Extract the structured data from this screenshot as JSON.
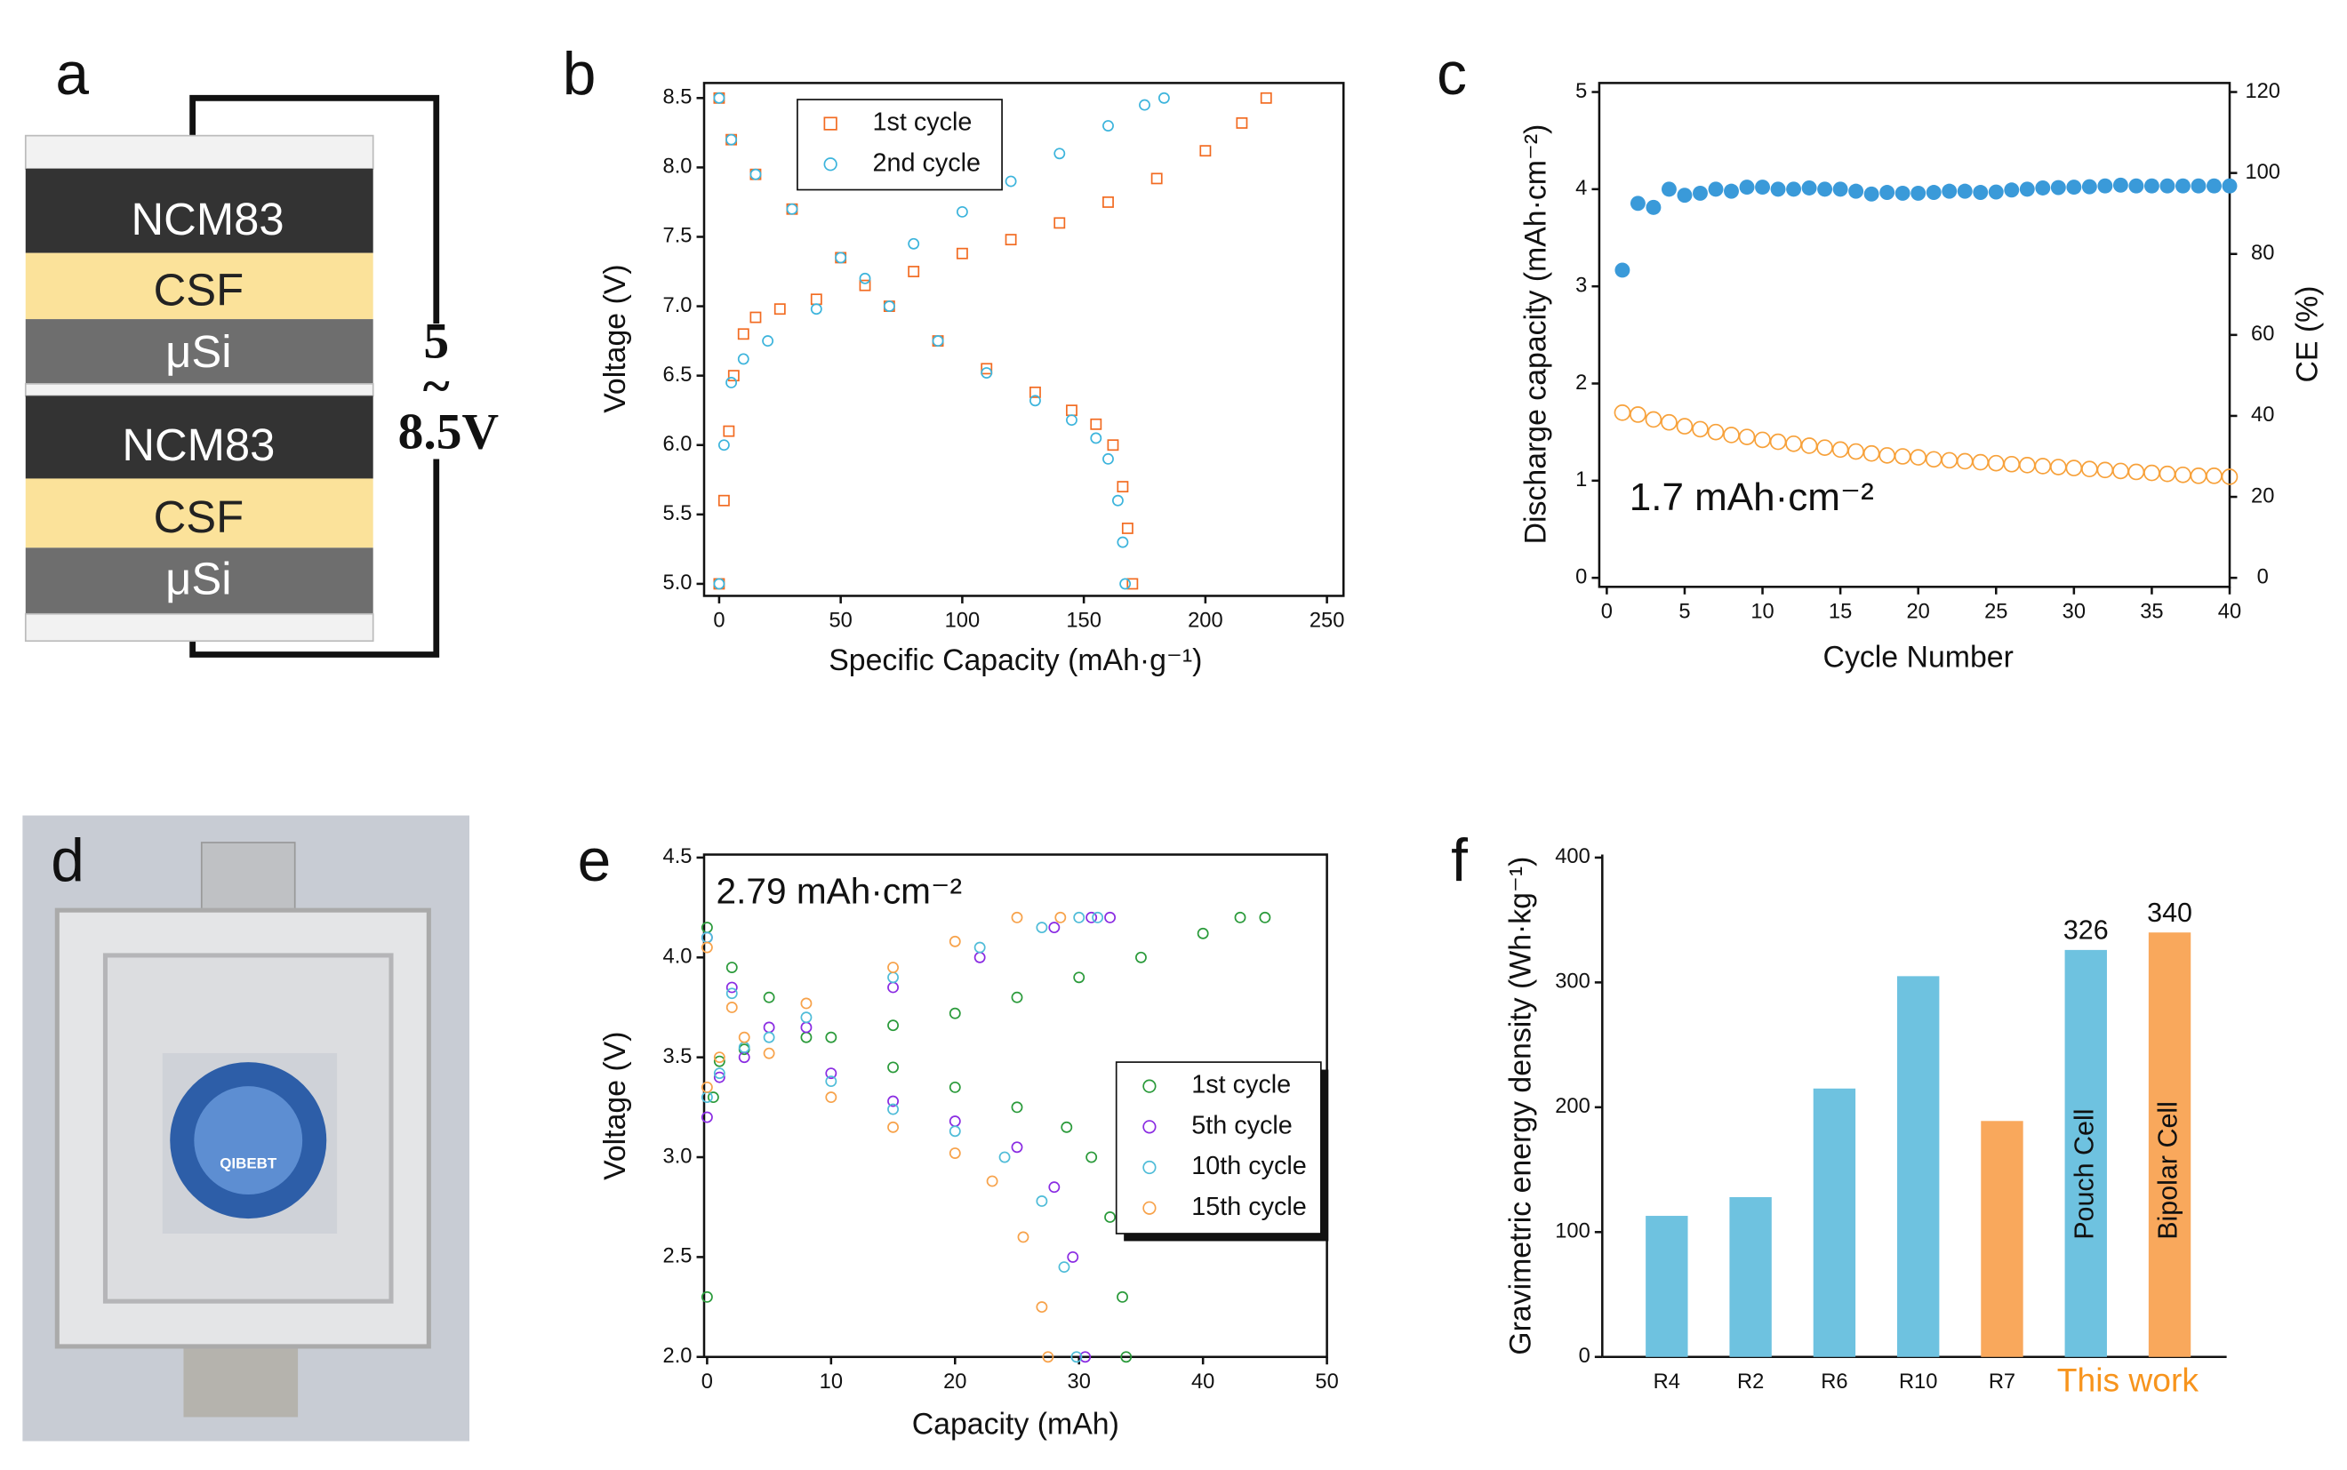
{
  "panels": [
    "a",
    "b",
    "c",
    "d",
    "e",
    "f"
  ],
  "diagram": {
    "layers": [
      "NCM83",
      "CSF",
      "μSi",
      "NCM83",
      "CSF",
      "μSi"
    ],
    "voltage": [
      "5",
      "~",
      "8.5V"
    ]
  },
  "photo": {
    "logo_text": "QIBEBT"
  },
  "chart_data": [
    {
      "type": "scatter",
      "x_label": "Specific Capacity (mAh·g⁻¹)",
      "y_label": "Voltage (V)",
      "xlim": [
        0,
        250
      ],
      "xticks": [
        0,
        50,
        100,
        150,
        200,
        250
      ],
      "ylim": [
        5,
        8.5
      ],
      "yticks": [
        {
          "value": 5,
          "label": "5.0"
        },
        {
          "value": 5.5,
          "label": "5.5"
        },
        {
          "value": 6,
          "label": "6.0"
        },
        {
          "value": 6.5,
          "label": "6.5"
        },
        {
          "value": 7,
          "label": "7.0"
        },
        {
          "value": 7.5,
          "label": "7.5"
        },
        {
          "value": 8,
          "label": "8.0"
        },
        {
          "value": 8.5,
          "label": "8.5"
        }
      ],
      "legend": "upper left",
      "frame": true,
      "series": [
        {
          "name": "1st cycle",
          "color": "#f26b21",
          "marker": "square",
          "x": [
            0,
            2,
            4,
            6,
            10,
            15,
            25,
            40,
            60,
            80,
            100,
            120,
            140,
            160,
            180,
            200,
            215,
            225,
            0,
            5,
            15,
            30,
            50,
            70,
            90,
            110,
            130,
            145,
            155,
            162,
            166,
            168,
            170
          ],
          "values": [
            5.0,
            5.6,
            6.1,
            6.5,
            6.8,
            6.92,
            6.98,
            7.05,
            7.15,
            7.25,
            7.38,
            7.48,
            7.6,
            7.75,
            7.92,
            8.12,
            8.32,
            8.5,
            8.5,
            8.2,
            7.95,
            7.7,
            7.35,
            7.0,
            6.75,
            6.55,
            6.38,
            6.25,
            6.15,
            6.0,
            5.7,
            5.4,
            5.0
          ]
        },
        {
          "name": "2nd cycle",
          "color": "#3cb4dc",
          "marker": "circle",
          "x": [
            0,
            2,
            5,
            10,
            20,
            40,
            60,
            80,
            100,
            120,
            140,
            160,
            175,
            183,
            0,
            5,
            15,
            30,
            50,
            70,
            90,
            110,
            130,
            145,
            155,
            160,
            164,
            166,
            167
          ],
          "values": [
            5.0,
            6.0,
            6.45,
            6.62,
            6.75,
            6.98,
            7.2,
            7.45,
            7.68,
            7.9,
            8.1,
            8.3,
            8.45,
            8.5,
            8.5,
            8.2,
            7.95,
            7.7,
            7.35,
            7.0,
            6.75,
            6.52,
            6.32,
            6.18,
            6.05,
            5.9,
            5.6,
            5.3,
            5.0
          ]
        }
      ]
    },
    {
      "type": "scatter",
      "x_label": "Cycle Number",
      "y_label": "Discharge capacity (mAh·cm⁻²)",
      "y2_label": "CE (%)",
      "annotation": "1.7 mAh·cm⁻²",
      "xlim": [
        0,
        40
      ],
      "xticks": [
        0,
        5,
        10,
        15,
        20,
        25,
        30,
        35,
        40
      ],
      "ylim": [
        0,
        5
      ],
      "yticks": [
        0,
        1,
        2,
        3,
        4,
        5
      ],
      "y2lim": [
        0,
        120
      ],
      "y2ticks": [
        0,
        20,
        40,
        60,
        80,
        100,
        120
      ],
      "frame": true,
      "series": [
        {
          "name": "Discharge capacity",
          "color": "#f7a13a",
          "marker": "circle",
          "x": [
            1,
            2,
            3,
            4,
            5,
            6,
            7,
            8,
            9,
            10,
            11,
            12,
            13,
            14,
            15,
            16,
            17,
            18,
            19,
            20,
            21,
            22,
            23,
            24,
            25,
            26,
            27,
            28,
            29,
            30,
            31,
            32,
            33,
            34,
            35,
            36,
            37,
            38,
            39,
            40
          ],
          "values": [
            1.7,
            1.68,
            1.63,
            1.6,
            1.56,
            1.53,
            1.5,
            1.47,
            1.45,
            1.42,
            1.4,
            1.38,
            1.36,
            1.34,
            1.32,
            1.3,
            1.28,
            1.26,
            1.25,
            1.24,
            1.22,
            1.21,
            1.2,
            1.19,
            1.18,
            1.17,
            1.16,
            1.15,
            1.14,
            1.13,
            1.12,
            1.11,
            1.1,
            1.09,
            1.08,
            1.07,
            1.06,
            1.05,
            1.05,
            1.04
          ]
        },
        {
          "name": "CE",
          "color": "#3a9ad9",
          "marker": "disc",
          "axis": "y2",
          "x": [
            1,
            2,
            3,
            4,
            5,
            6,
            7,
            8,
            9,
            10,
            11,
            12,
            13,
            14,
            15,
            16,
            17,
            18,
            19,
            20,
            21,
            22,
            23,
            24,
            25,
            26,
            27,
            28,
            29,
            30,
            31,
            32,
            33,
            34,
            35,
            36,
            37,
            38,
            39,
            40
          ],
          "values": [
            76,
            92.5,
            91.5,
            96,
            94.5,
            95,
            96,
            95.5,
            96.5,
            96.5,
            96,
            96,
            96.3,
            96,
            96,
            95.5,
            94.8,
            95.2,
            95,
            95,
            95.2,
            95.5,
            95.5,
            95.2,
            95.3,
            95.8,
            96,
            96.3,
            96.4,
            96.5,
            96.6,
            96.8,
            97,
            96.8,
            96.8,
            96.8,
            96.8,
            96.8,
            96.8,
            96.8
          ]
        }
      ]
    },
    {
      "type": "scatter",
      "x_label": "Capacity (mAh)",
      "y_label": "Voltage (V)",
      "annotation": "2.79 mAh·cm⁻²",
      "xlim": [
        0,
        50
      ],
      "xticks": [
        0,
        10,
        20,
        30,
        40,
        50
      ],
      "ylim": [
        2,
        4.5
      ],
      "yticks": [
        {
          "value": 2,
          "label": "2.0"
        },
        {
          "value": 2.5,
          "label": "2.5"
        },
        {
          "value": 3,
          "label": "3.0"
        },
        {
          "value": 3.5,
          "label": "3.5"
        },
        {
          "value": 4,
          "label": "4.0"
        },
        {
          "value": 4.5,
          "label": "4.5"
        }
      ],
      "legend": "lower right",
      "frame": true,
      "series": [
        {
          "name": "1st cycle",
          "color": "#2a9a3a",
          "marker": "circle",
          "x": [
            0,
            0.5,
            1,
            3,
            8,
            15,
            20,
            25,
            30,
            35,
            40,
            43,
            45,
            0,
            2,
            5,
            10,
            15,
            20,
            25,
            29,
            31,
            32.5,
            33.5,
            33.8
          ],
          "values": [
            2.3,
            3.3,
            3.48,
            3.54,
            3.6,
            3.66,
            3.72,
            3.8,
            3.9,
            4.0,
            4.12,
            4.2,
            4.2,
            4.15,
            3.95,
            3.8,
            3.6,
            3.45,
            3.35,
            3.25,
            3.15,
            3.0,
            2.7,
            2.3,
            2.0
          ]
        },
        {
          "name": "5th cycle",
          "color": "#8a2be2",
          "marker": "circle",
          "x": [
            0,
            1,
            3,
            8,
            15,
            22,
            28,
            31,
            32.5,
            0,
            2,
            5,
            10,
            15,
            20,
            25,
            28,
            29.5,
            30.5
          ],
          "values": [
            3.2,
            3.4,
            3.5,
            3.65,
            3.85,
            4.0,
            4.15,
            4.2,
            4.2,
            4.1,
            3.85,
            3.65,
            3.42,
            3.28,
            3.18,
            3.05,
            2.85,
            2.5,
            2.0
          ]
        },
        {
          "name": "10th cycle",
          "color": "#4fbcd8",
          "marker": "circle",
          "x": [
            0,
            1,
            3,
            8,
            15,
            22,
            27,
            30,
            31.5,
            0,
            2,
            5,
            10,
            15,
            20,
            24,
            27,
            28.8,
            29.8
          ],
          "values": [
            3.3,
            3.42,
            3.55,
            3.7,
            3.9,
            4.05,
            4.15,
            4.2,
            4.2,
            4.1,
            3.82,
            3.6,
            3.38,
            3.24,
            3.13,
            3.0,
            2.78,
            2.45,
            2.0
          ]
        },
        {
          "name": "15th cycle",
          "color": "#f7a24a",
          "marker": "circle",
          "x": [
            0,
            1,
            3,
            8,
            15,
            20,
            25,
            28.5,
            0,
            2,
            5,
            10,
            15,
            20,
            23,
            25.5,
            27,
            27.5
          ],
          "values": [
            3.35,
            3.5,
            3.6,
            3.77,
            3.95,
            4.08,
            4.2,
            4.2,
            4.05,
            3.75,
            3.52,
            3.3,
            3.15,
            3.02,
            2.88,
            2.6,
            2.25,
            2.0
          ]
        }
      ]
    },
    {
      "type": "bar",
      "y_label": "Gravimetric energy density (Wh·kg⁻¹)",
      "categories": [
        "R4",
        "R2",
        "R6",
        "R10",
        "R7",
        null,
        null
      ],
      "values": [
        113,
        128,
        215,
        305,
        189,
        326,
        340
      ],
      "colors": [
        "#6ec2e0",
        "#6ec2e0",
        "#6ec2e0",
        "#6ec2e0",
        "#f9a85c",
        "#6ec2e0",
        "#f9a85c"
      ],
      "bar_labels": [
        null,
        null,
        null,
        null,
        null,
        "Pouch Cell",
        "Bipolar Cell"
      ],
      "group_label": "This work",
      "group_label_color": "#f7941d",
      "ylim": [
        0,
        400
      ],
      "yticks": [
        0,
        100,
        200,
        300,
        400
      ],
      "frame": false
    }
  ]
}
